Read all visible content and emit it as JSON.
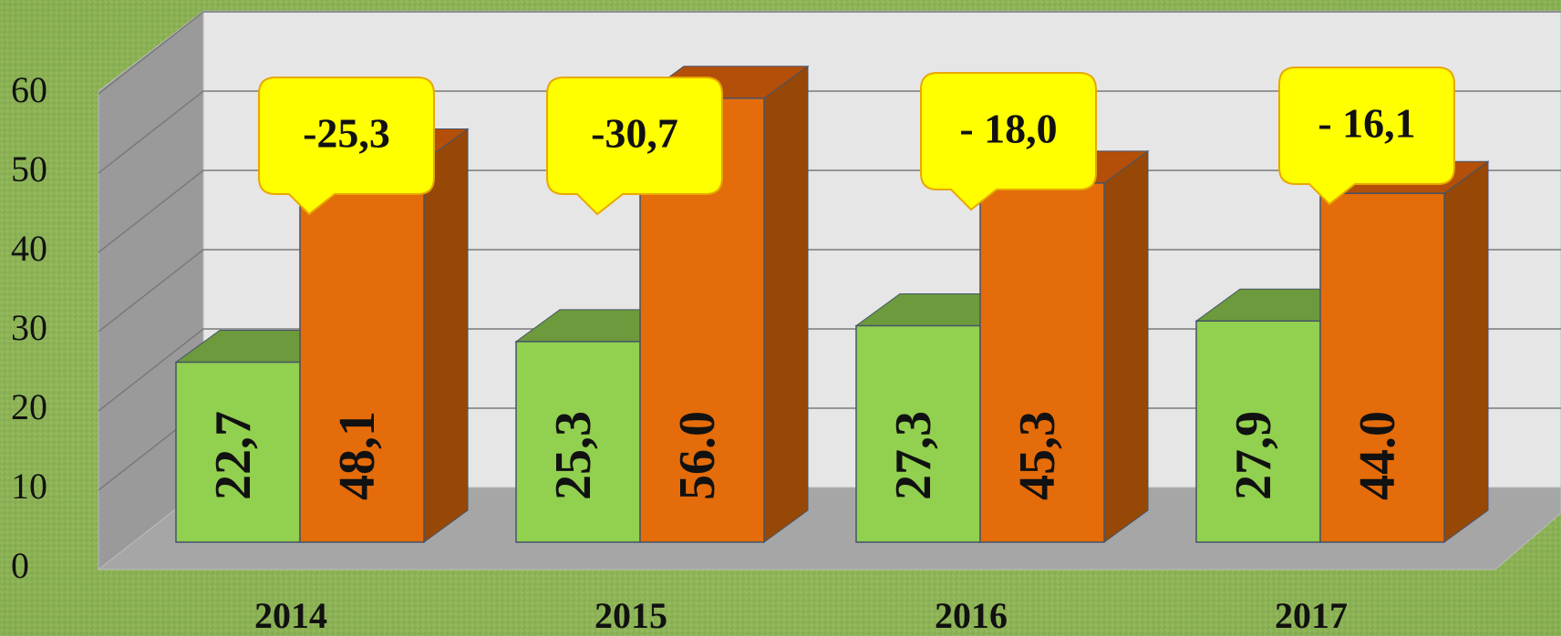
{
  "chart_data": {
    "type": "bar3d",
    "categories": [
      "2014",
      "2015",
      "2016",
      "2017"
    ],
    "series": [
      {
        "color": "#92d050",
        "values": [
          22.7,
          25.3,
          27.3,
          27.9
        ],
        "value_labels": [
          "22,7",
          "25,3",
          "27,3",
          "27,9"
        ]
      },
      {
        "color": "#e46c0a",
        "values": [
          48.1,
          56.0,
          45.3,
          44.0
        ],
        "value_labels": [
          "48,1",
          "56.0",
          "45,3",
          "44.0"
        ]
      }
    ],
    "annotations": [
      "-25,3",
      "-30,7",
      "- 18,0",
      "- 16,1"
    ],
    "ylim": [
      0,
      70
    ],
    "yticks": [
      0,
      10,
      20,
      30,
      40,
      50,
      60
    ],
    "grid": true
  }
}
